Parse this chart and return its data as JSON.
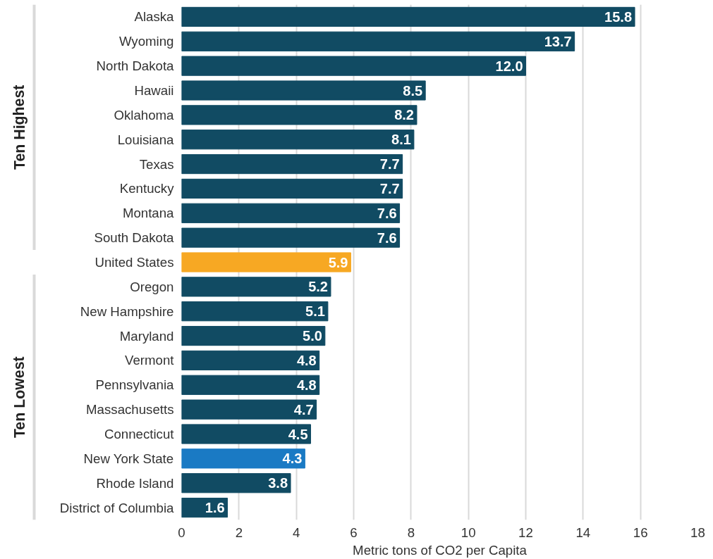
{
  "chart_data": {
    "type": "bar",
    "orientation": "horizontal",
    "categories": [
      "Alaska",
      "Wyoming",
      "North Dakota",
      "Hawaii",
      "Oklahoma",
      "Louisiana",
      "Texas",
      "Kentucky",
      "Montana",
      "South Dakota",
      "United States",
      "Oregon",
      "New Hampshire",
      "Maryland",
      "Vermont",
      "Pennsylvania",
      "Massachusetts",
      "Connecticut",
      "New York State",
      "Rhode Island",
      "District of Columbia"
    ],
    "values": [
      15.8,
      13.7,
      12.0,
      8.5,
      8.2,
      8.1,
      7.7,
      7.7,
      7.6,
      7.6,
      5.9,
      5.2,
      5.1,
      5.0,
      4.8,
      4.8,
      4.7,
      4.5,
      4.3,
      3.8,
      1.6
    ],
    "value_labels": [
      "15.8",
      "13.7",
      "12.0",
      "8.5",
      "8.2",
      "8.1",
      "7.7",
      "7.7",
      "7.6",
      "7.6",
      "5.9",
      "5.2",
      "5.1",
      "5.0",
      "4.8",
      "4.8",
      "4.7",
      "4.5",
      "4.3",
      "3.8",
      "1.6"
    ],
    "colors": [
      "#114b63",
      "#114b63",
      "#114b63",
      "#114b63",
      "#114b63",
      "#114b63",
      "#114b63",
      "#114b63",
      "#114b63",
      "#114b63",
      "#f7a823",
      "#114b63",
      "#114b63",
      "#114b63",
      "#114b63",
      "#114b63",
      "#114b63",
      "#114b63",
      "#1a7ac4",
      "#114b63",
      "#114b63"
    ],
    "xlabel": "Metric tons of CO2 per Capita",
    "xlim": [
      0,
      18
    ],
    "xticks": [
      0,
      2,
      4,
      6,
      8,
      10,
      12,
      14,
      16,
      18
    ],
    "grid": "x",
    "annotations": [
      "Ten Highest",
      "Ten Lowest"
    ]
  }
}
